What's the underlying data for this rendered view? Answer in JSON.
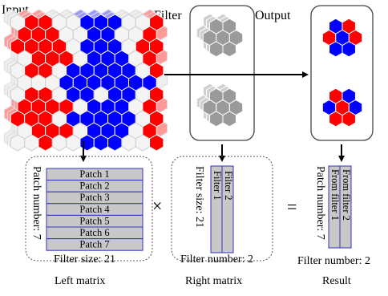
{
  "labels": {
    "input": "Input",
    "filter": "Filter",
    "output": "Output"
  },
  "left_matrix": {
    "patches": [
      "Patch 1",
      "Patch 2",
      "Patch 3",
      "Patch 4",
      "Patch 5",
      "Patch 6",
      "Patch 7"
    ],
    "row_axis_label": "Patch number: 7",
    "col_axis_label": "Filter size: 21",
    "caption": "Left matrix"
  },
  "operators": {
    "times": "×",
    "equals": "="
  },
  "right_matrix": {
    "filters": [
      "Filter 1",
      "Filter 2"
    ],
    "row_axis_label": "Filter size: 21",
    "col_axis_label": "Filter number: 2",
    "caption": "Right matrix"
  },
  "result_matrix": {
    "columns": [
      "From filter 1",
      "From filter 2"
    ],
    "row_axis_label": "Patch number: 7",
    "col_axis_label": "Filter number: 2",
    "caption": "Result"
  },
  "colors": {
    "red": "#ff0000",
    "blue": "#0000ff",
    "gray": "#9a9a9a",
    "gray_light": "#bdbdbd",
    "matrix_fill": "#c8c8c8",
    "matrix_stroke": "#3333bb"
  }
}
